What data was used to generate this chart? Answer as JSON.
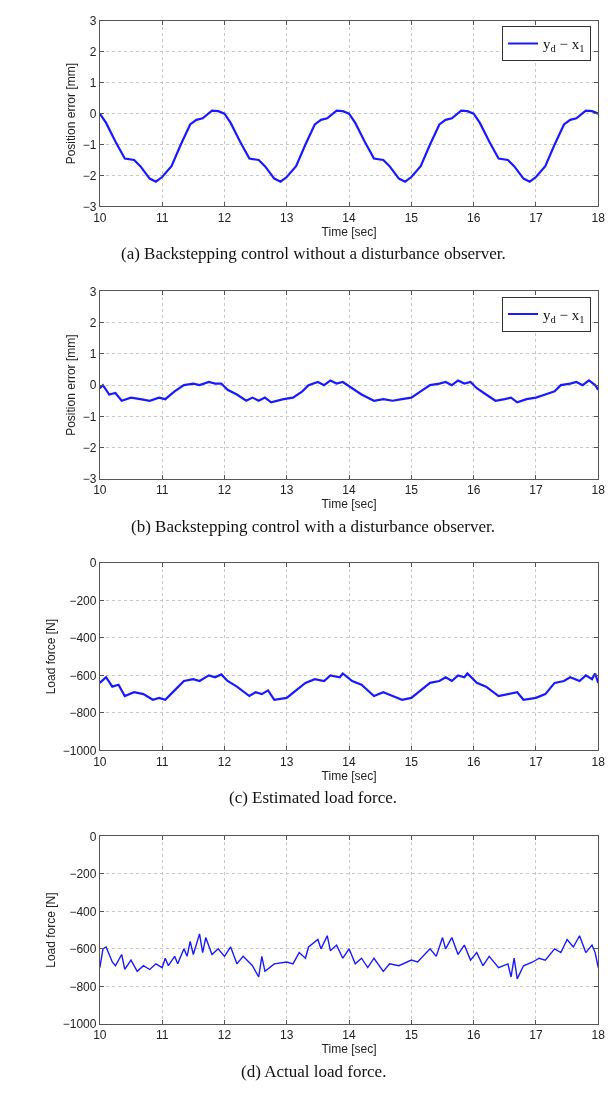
{
  "chart_data": [
    {
      "type": "line",
      "xlabel": "Time [sec]",
      "ylabel": "Position error [mm]",
      "annotations": [
        "(a) Backstepping control without a disturbance observer."
      ],
      "xlim": [
        10,
        18
      ],
      "ylim": [
        -3,
        3
      ],
      "xticks": [
        10,
        11,
        12,
        13,
        14,
        15,
        16,
        17,
        18
      ],
      "yticks": [
        -3,
        -2,
        -1,
        0,
        1,
        2,
        3
      ],
      "grid": true,
      "legend": "top right",
      "line_style": "solid",
      "x": [
        10,
        10.1,
        10.25,
        10.4,
        10.55,
        10.65,
        10.8,
        10.9,
        11.0,
        11.15,
        11.3,
        11.45,
        11.55,
        11.65,
        11.8,
        11.9,
        12,
        12.1,
        12.25,
        12.4,
        12.55,
        12.65,
        12.8,
        12.9,
        13.0,
        13.15,
        13.3,
        13.45,
        13.55,
        13.65,
        13.8,
        13.9,
        14,
        14.1,
        14.25,
        14.4,
        14.55,
        14.65,
        14.8,
        14.9,
        15.0,
        15.15,
        15.3,
        15.45,
        15.55,
        15.65,
        15.8,
        15.9,
        16,
        16.1,
        16.25,
        16.4,
        16.55,
        16.65,
        16.8,
        16.9,
        17.0,
        17.15,
        17.3,
        17.45,
        17.55,
        17.65,
        17.8,
        17.9,
        18
      ],
      "series": [
        {
          "name": "y$_{d}$ − x$_{1}$",
          "color": "#1a1aff",
          "values": [
            0,
            -0.3,
            -0.9,
            -1.45,
            -1.5,
            -1.7,
            -2.1,
            -2.2,
            -2.05,
            -1.7,
            -1.0,
            -0.35,
            -0.2,
            -0.15,
            0.1,
            0.08,
            0,
            -0.3,
            -0.9,
            -1.45,
            -1.5,
            -1.7,
            -2.1,
            -2.2,
            -2.05,
            -1.7,
            -1.0,
            -0.35,
            -0.2,
            -0.15,
            0.1,
            0.08,
            0,
            -0.3,
            -0.9,
            -1.45,
            -1.5,
            -1.7,
            -2.1,
            -2.2,
            -2.05,
            -1.7,
            -1.0,
            -0.35,
            -0.2,
            -0.15,
            0.1,
            0.08,
            0,
            -0.3,
            -0.9,
            -1.45,
            -1.5,
            -1.7,
            -2.1,
            -2.2,
            -2.05,
            -1.7,
            -1.0,
            -0.35,
            -0.2,
            -0.15,
            0.1,
            0.08,
            0
          ]
        }
      ]
    },
    {
      "type": "line",
      "xlabel": "Time [sec]",
      "ylabel": "Position error [mm]",
      "annotations": [
        "(b) Backstepping control with a disturbance observer."
      ],
      "xlim": [
        10,
        18
      ],
      "ylim": [
        -3,
        3
      ],
      "xticks": [
        10,
        11,
        12,
        13,
        14,
        15,
        16,
        17,
        18
      ],
      "yticks": [
        -3,
        -2,
        -1,
        0,
        1,
        2,
        3
      ],
      "grid": true,
      "legend": "top right",
      "line_style": "solid",
      "x": [
        10,
        10.05,
        10.15,
        10.25,
        10.35,
        10.5,
        10.65,
        10.8,
        10.95,
        11.05,
        11.2,
        11.35,
        11.5,
        11.6,
        11.75,
        11.85,
        11.95,
        12.05,
        12.2,
        12.35,
        12.45,
        12.55,
        12.65,
        12.75,
        12.95,
        13.1,
        13.25,
        13.35,
        13.5,
        13.6,
        13.7,
        13.8,
        13.9,
        14.05,
        14.2,
        14.4,
        14.55,
        14.7,
        14.85,
        15.0,
        15.15,
        15.3,
        15.45,
        15.55,
        15.65,
        15.75,
        15.85,
        15.95,
        16.05,
        16.2,
        16.35,
        16.5,
        16.6,
        16.7,
        16.85,
        17.0,
        17.15,
        17.3,
        17.4,
        17.55,
        17.65,
        17.75,
        17.85,
        17.95,
        18.0
      ],
      "series": [
        {
          "name": "y$_{d}$ − x$_{1}$",
          "color": "#1a1aff",
          "values": [
            -0.1,
            0.0,
            -0.3,
            -0.25,
            -0.5,
            -0.4,
            -0.45,
            -0.5,
            -0.4,
            -0.45,
            -0.2,
            0.0,
            0.05,
            0.0,
            0.1,
            0.05,
            0.05,
            -0.15,
            -0.3,
            -0.5,
            -0.4,
            -0.5,
            -0.4,
            -0.55,
            -0.45,
            -0.4,
            -0.2,
            0.0,
            0.1,
            0.0,
            0.15,
            0.05,
            0.1,
            -0.1,
            -0.3,
            -0.5,
            -0.45,
            -0.5,
            -0.45,
            -0.4,
            -0.2,
            0.0,
            0.05,
            0.1,
            0.0,
            0.15,
            0.05,
            0.1,
            -0.1,
            -0.3,
            -0.5,
            -0.45,
            -0.4,
            -0.55,
            -0.45,
            -0.4,
            -0.3,
            -0.2,
            0.0,
            0.05,
            0.1,
            0.0,
            0.15,
            0.0,
            -0.15
          ]
        }
      ]
    },
    {
      "type": "line",
      "xlabel": "Time [sec]",
      "ylabel": "Load force [N]",
      "annotations": [
        "(c) Estimated load force."
      ],
      "xlim": [
        10,
        18
      ],
      "ylim": [
        -1000,
        0
      ],
      "xticks": [
        10,
        11,
        12,
        13,
        14,
        15,
        16,
        17,
        18
      ],
      "yticks": [
        -1000,
        -800,
        -600,
        -400,
        -200,
        0
      ],
      "grid": true,
      "line_style": "solid",
      "x": [
        10,
        10.1,
        10.2,
        10.3,
        10.4,
        10.55,
        10.7,
        10.85,
        10.95,
        11.05,
        11.2,
        11.35,
        11.5,
        11.6,
        11.75,
        11.85,
        11.95,
        12.05,
        12.2,
        12.4,
        12.5,
        12.6,
        12.7,
        12.8,
        13.0,
        13.15,
        13.3,
        13.45,
        13.6,
        13.7,
        13.85,
        13.9,
        14.05,
        14.2,
        14.4,
        14.55,
        14.7,
        14.85,
        15.0,
        15.15,
        15.3,
        15.45,
        15.55,
        15.65,
        15.75,
        15.85,
        15.9,
        16.05,
        16.2,
        16.4,
        16.55,
        16.7,
        16.8,
        17.0,
        17.15,
        17.3,
        17.45,
        17.55,
        17.7,
        17.8,
        17.9,
        17.95,
        18.0
      ],
      "series": [
        {
          "color": "#1a1aff",
          "values": [
            -640,
            -610,
            -660,
            -650,
            -710,
            -690,
            -700,
            -730,
            -720,
            -730,
            -680,
            -630,
            -620,
            -630,
            -600,
            -610,
            -595,
            -630,
            -660,
            -710,
            -690,
            -700,
            -680,
            -730,
            -720,
            -680,
            -640,
            -620,
            -630,
            -600,
            -610,
            -590,
            -630,
            -650,
            -710,
            -690,
            -710,
            -730,
            -720,
            -680,
            -640,
            -630,
            -610,
            -630,
            -600,
            -610,
            -590,
            -640,
            -660,
            -710,
            -700,
            -690,
            -730,
            -720,
            -700,
            -640,
            -630,
            -610,
            -630,
            -600,
            -620,
            -590,
            -640
          ]
        }
      ]
    },
    {
      "type": "line",
      "xlabel": "Time [sec]",
      "ylabel": "Load force [N]",
      "annotations": [
        "(d) Actual load force."
      ],
      "xlim": [
        10,
        18
      ],
      "ylim": [
        -1000,
        0
      ],
      "xticks": [
        10,
        11,
        12,
        13,
        14,
        15,
        16,
        17,
        18
      ],
      "yticks": [
        -1000,
        -800,
        -600,
        -400,
        -200,
        0
      ],
      "grid": true,
      "line_style": "solid",
      "x": [
        10,
        10.05,
        10.1,
        10.2,
        10.25,
        10.35,
        10.4,
        10.5,
        10.6,
        10.7,
        10.8,
        10.9,
        11.0,
        11.05,
        11.1,
        11.2,
        11.25,
        11.35,
        11.4,
        11.45,
        11.5,
        11.6,
        11.65,
        11.7,
        11.8,
        11.9,
        12.0,
        12.1,
        12.2,
        12.3,
        12.45,
        12.55,
        12.6,
        12.65,
        12.8,
        13.0,
        13.1,
        13.2,
        13.3,
        13.35,
        13.5,
        13.55,
        13.65,
        13.7,
        13.8,
        13.9,
        14.0,
        14.1,
        14.2,
        14.3,
        14.4,
        14.55,
        14.65,
        14.8,
        15.0,
        15.1,
        15.3,
        15.4,
        15.5,
        15.55,
        15.65,
        15.75,
        15.85,
        15.95,
        16.05,
        16.15,
        16.25,
        16.4,
        16.55,
        16.6,
        16.65,
        16.7,
        16.8,
        16.95,
        17.05,
        17.15,
        17.3,
        17.4,
        17.5,
        17.6,
        17.7,
        17.8,
        17.9,
        17.95,
        18.0
      ],
      "series": [
        {
          "color": "#1a1aff",
          "values": [
            -700,
            -600,
            -590,
            -670,
            -690,
            -630,
            -710,
            -660,
            -720,
            -690,
            -710,
            -680,
            -700,
            -650,
            -690,
            -640,
            -680,
            -600,
            -640,
            -560,
            -630,
            -520,
            -620,
            -540,
            -630,
            -600,
            -640,
            -590,
            -680,
            -640,
            -690,
            -750,
            -640,
            -720,
            -680,
            -670,
            -680,
            -620,
            -650,
            -590,
            -550,
            -600,
            -530,
            -610,
            -580,
            -650,
            -600,
            -680,
            -650,
            -700,
            -650,
            -720,
            -680,
            -690,
            -660,
            -670,
            -600,
            -640,
            -540,
            -600,
            -540,
            -630,
            -580,
            -660,
            -620,
            -690,
            -640,
            -700,
            -680,
            -750,
            -650,
            -760,
            -690,
            -670,
            -650,
            -660,
            -600,
            -620,
            -550,
            -590,
            -530,
            -620,
            -580,
            -620,
            -700
          ]
        }
      ]
    }
  ]
}
